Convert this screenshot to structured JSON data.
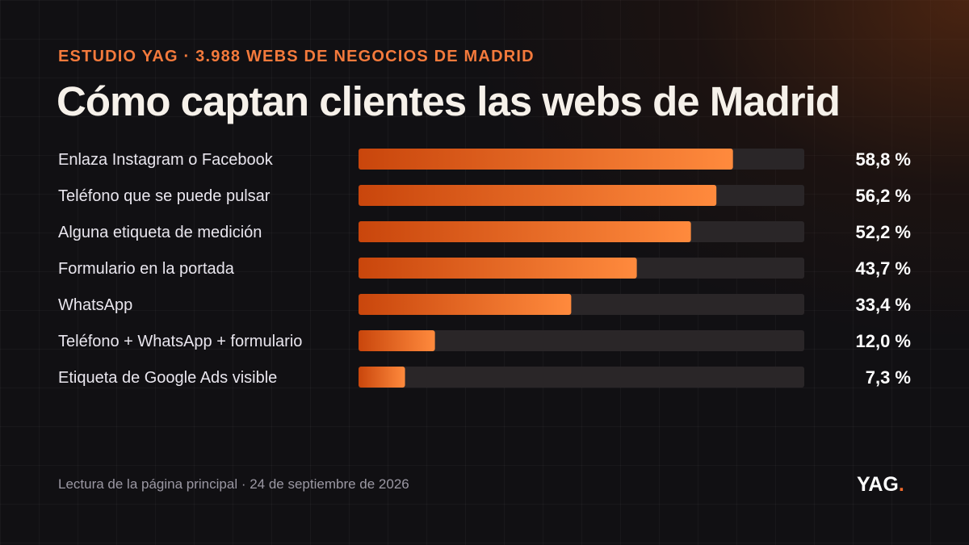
{
  "header": {
    "eyebrow": "ESTUDIO YAG · 3.988 WEBS DE NEGOCIOS DE MADRID",
    "title": "Cómo captan clientes las webs de Madrid"
  },
  "footer": {
    "note": "Lectura de la página principal · 24 de septiembre de 2026",
    "logo_text": "YAG",
    "logo_dot": "."
  },
  "colors": {
    "bar_start": "#c9460c",
    "bar_end": "#ff8a3d",
    "track": "#2a2628",
    "label": "#e9e6ee",
    "value": "#ffffff"
  },
  "chart_data": {
    "type": "bar",
    "orientation": "horizontal",
    "categories": [
      "Enlaza Instagram o Facebook",
      "Teléfono que se puede pulsar",
      "Alguna etiqueta de medición",
      "Formulario en la portada",
      "WhatsApp",
      "Teléfono + WhatsApp + formulario",
      "Etiqueta de Google Ads visible"
    ],
    "values": [
      58.8,
      56.2,
      52.2,
      43.7,
      33.4,
      12.0,
      7.3
    ],
    "value_labels": [
      "58,8 %",
      "56,2 %",
      "52,2 %",
      "43,7 %",
      "33,4 %",
      "12,0 %",
      "7,3 %"
    ],
    "xlim": [
      0,
      70
    ],
    "unit": "%"
  }
}
